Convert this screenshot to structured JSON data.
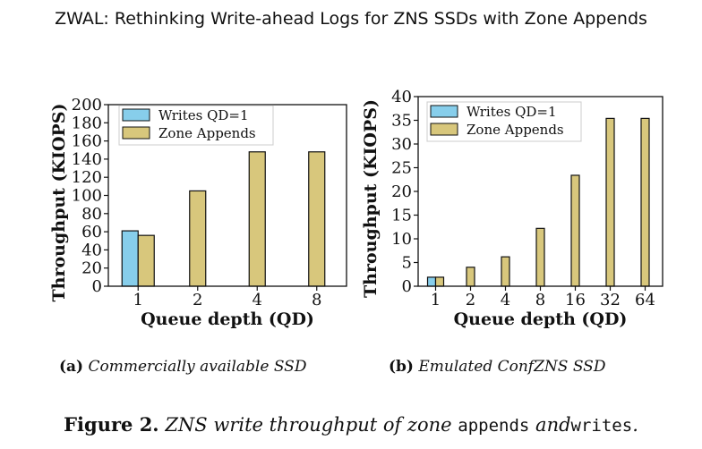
{
  "header": {
    "title": "ZWAL: Rethinking Write-ahead Logs for ZNS SSDs with Zone Appends"
  },
  "colors": {
    "writes": "#87CEEB",
    "zone_appends": "#D8C77C",
    "stroke": "#111111"
  },
  "chart_data": [
    {
      "type": "bar",
      "categories": [
        "1",
        "2",
        "4",
        "8"
      ],
      "series": [
        {
          "name": "Writes QD=1",
          "values": [
            61,
            null,
            null,
            null
          ]
        },
        {
          "name": "Zone Appends",
          "values": [
            56,
            105,
            148,
            148
          ]
        }
      ],
      "xlabel": "Queue depth (QD)",
      "ylabel": "Throughput (KIOPS)",
      "ylim": [
        0,
        200
      ],
      "yticks": [
        0,
        20,
        40,
        60,
        80,
        100,
        120,
        140,
        160,
        180,
        200
      ],
      "legend": "top-left",
      "grid": false
    },
    {
      "type": "bar",
      "categories": [
        "1",
        "2",
        "4",
        "8",
        "16",
        "32",
        "64"
      ],
      "series": [
        {
          "name": "Writes QD=1",
          "values": [
            1.9,
            null,
            null,
            null,
            null,
            null,
            null
          ]
        },
        {
          "name": "Zone Appends",
          "values": [
            1.9,
            4,
            6.2,
            12.2,
            23.4,
            35.4,
            35.4
          ]
        }
      ],
      "xlabel": "Queue depth (QD)",
      "ylabel": "Throughput (KIOPS)",
      "ylim": [
        0,
        40
      ],
      "yticks": [
        0,
        5,
        10,
        15,
        20,
        25,
        30,
        35,
        40
      ],
      "legend": "top-left",
      "grid": false
    }
  ],
  "subcaptions": [
    {
      "label": "(a)",
      "text": "Commercially available SSD"
    },
    {
      "label": "(b)",
      "text": "Emulated ConfZNS SSD"
    }
  ],
  "figure_caption": {
    "number": "Figure 2.",
    "text_1": "ZNS write throughput of zone",
    "code_1": "appends",
    "text_2": "and",
    "code_2": "writes",
    "text_3": "."
  }
}
